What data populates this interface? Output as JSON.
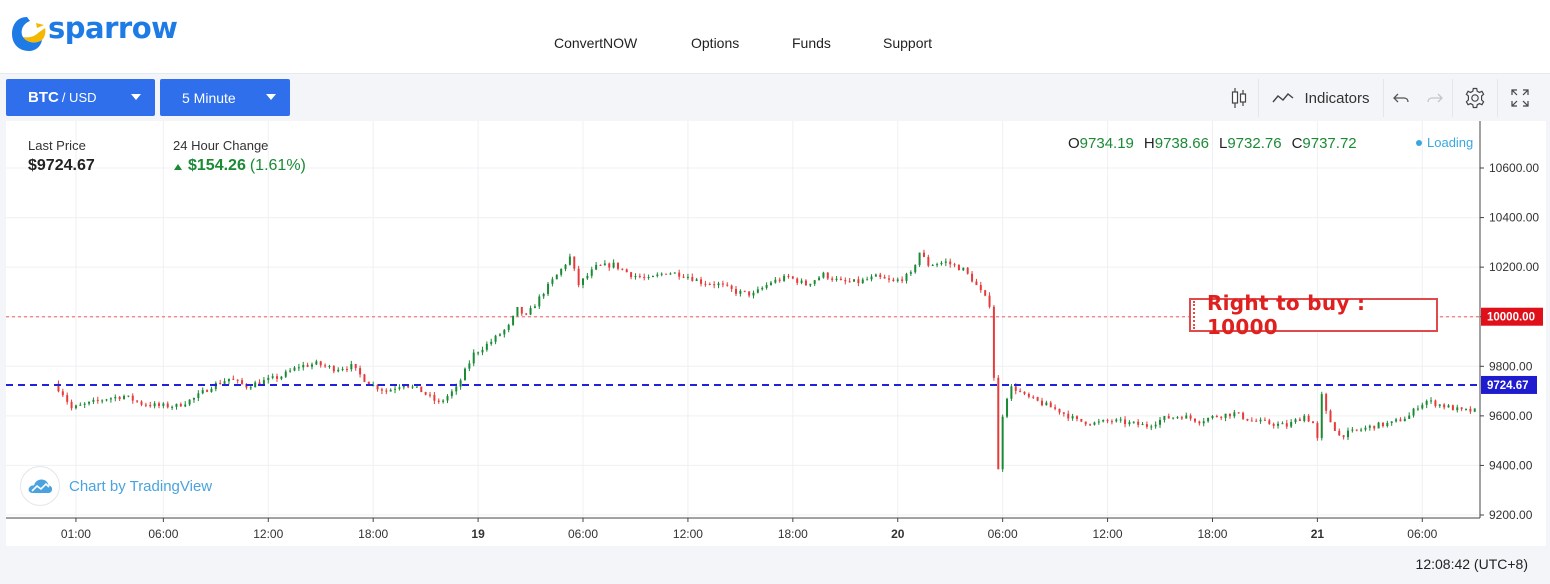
{
  "brand": {
    "name": "sparrow",
    "accent": "#1e7be6",
    "mark_color": "#f5b800"
  },
  "nav": {
    "items": [
      {
        "label": "ConvertNOW"
      },
      {
        "label": "Options"
      },
      {
        "label": "Funds"
      },
      {
        "label": "Support"
      }
    ]
  },
  "toolbar": {
    "pair": {
      "base": "BTC",
      "quote": "/ USD"
    },
    "interval": "5 Minute",
    "indicators_label": "Indicators",
    "icons": [
      "candles-icon",
      "indicators-icon",
      "undo-icon",
      "redo-icon",
      "settings-icon",
      "fullscreen-icon"
    ]
  },
  "stats": {
    "last_price_label": "Last Price",
    "last_price": "$9724.67",
    "change_label": "24 Hour Change",
    "change_value": "$154.26",
    "change_pct": "(1.61%)"
  },
  "ohlc": {
    "o": "9734.19",
    "h": "9738.66",
    "l": "9732.76",
    "c": "9737.72"
  },
  "loading_label": "Loading",
  "watermark": "Chart by TradingView",
  "right_to_buy": "Right to buy : 10000",
  "timestamp": "12:08:42 (UTC+8)",
  "colors": {
    "up": "#1a8a35",
    "down": "#e63b3b",
    "strike_line": "#f07a7a",
    "price_line": "#2222dd",
    "button": "#2f6fec"
  },
  "chart_data": {
    "type": "candlestick",
    "y_ticks": [
      "10600.00",
      "10400.00",
      "10200.00",
      "10000.00",
      "9800.00",
      "9600.00",
      "9400.00",
      "9200.00"
    ],
    "ylim": [
      9200,
      10600
    ],
    "x_ticks": [
      "01:00",
      "06:00",
      "12:00",
      "18:00",
      "19",
      "06:00",
      "12:00",
      "18:00",
      "20",
      "06:00",
      "12:00",
      "18:00",
      "21",
      "06:00"
    ],
    "x_tick_hours": [
      1,
      6,
      12,
      18,
      24,
      30,
      36,
      42,
      48,
      54,
      60,
      66,
      72,
      78
    ],
    "xlim_hours": [
      -3,
      81.3
    ],
    "strike_price": 10000,
    "strike_label": "10000.00",
    "last_price": 9724.67,
    "last_price_label": "9724.67",
    "price_path": [
      [
        0.0,
        9730
      ],
      [
        0.5,
        9690
      ],
      [
        1.0,
        9630
      ],
      [
        2.0,
        9650
      ],
      [
        3.0,
        9670
      ],
      [
        4.0,
        9680
      ],
      [
        5.0,
        9650
      ],
      [
        6.0,
        9640
      ],
      [
        7.0,
        9640
      ],
      [
        8.0,
        9670
      ],
      [
        9.0,
        9720
      ],
      [
        10.0,
        9750
      ],
      [
        11.0,
        9720
      ],
      [
        12.0,
        9740
      ],
      [
        13.0,
        9760
      ],
      [
        14.0,
        9800
      ],
      [
        15.0,
        9810
      ],
      [
        16.0,
        9790
      ],
      [
        17.0,
        9800
      ],
      [
        18.0,
        9730
      ],
      [
        19.0,
        9700
      ],
      [
        20.0,
        9730
      ],
      [
        21.0,
        9700
      ],
      [
        22.0,
        9650
      ],
      [
        23.0,
        9710
      ],
      [
        24.0,
        9850
      ],
      [
        25.0,
        9900
      ],
      [
        26.0,
        9960
      ],
      [
        26.5,
        10030
      ],
      [
        27.0,
        10000
      ],
      [
        28.0,
        10100
      ],
      [
        29.0,
        10190
      ],
      [
        29.5,
        10240
      ],
      [
        30.0,
        10130
      ],
      [
        31.0,
        10200
      ],
      [
        32.0,
        10210
      ],
      [
        33.0,
        10170
      ],
      [
        34.0,
        10150
      ],
      [
        35.0,
        10180
      ],
      [
        36.0,
        10170
      ],
      [
        37.0,
        10140
      ],
      [
        38.0,
        10130
      ],
      [
        39.0,
        10100
      ],
      [
        40.0,
        10090
      ],
      [
        41.0,
        10140
      ],
      [
        42.0,
        10160
      ],
      [
        43.0,
        10130
      ],
      [
        44.0,
        10170
      ],
      [
        45.0,
        10140
      ],
      [
        46.0,
        10140
      ],
      [
        47.0,
        10160
      ],
      [
        48.0,
        10140
      ],
      [
        49.0,
        10170
      ],
      [
        49.5,
        10260
      ],
      [
        50.0,
        10210
      ],
      [
        51.0,
        10220
      ],
      [
        52.0,
        10190
      ],
      [
        52.5,
        10150
      ],
      [
        53.0,
        10100
      ],
      [
        53.5,
        10050
      ],
      [
        53.8,
        9700
      ],
      [
        54.0,
        9380
      ],
      [
        54.3,
        9650
      ],
      [
        54.8,
        9720
      ],
      [
        55.5,
        9680
      ],
      [
        56.5,
        9650
      ],
      [
        57.5,
        9620
      ],
      [
        58.5,
        9580
      ],
      [
        59.5,
        9570
      ],
      [
        60.5,
        9580
      ],
      [
        61.5,
        9570
      ],
      [
        62.5,
        9560
      ],
      [
        63.5,
        9590
      ],
      [
        64.5,
        9600
      ],
      [
        65.5,
        9580
      ],
      [
        66.5,
        9600
      ],
      [
        67.5,
        9610
      ],
      [
        68.5,
        9580
      ],
      [
        69.5,
        9570
      ],
      [
        70.5,
        9560
      ],
      [
        71.5,
        9600
      ],
      [
        72.0,
        9570
      ],
      [
        72.2,
        9470
      ],
      [
        72.5,
        9680
      ],
      [
        72.8,
        9600
      ],
      [
        73.5,
        9520
      ],
      [
        74.5,
        9540
      ],
      [
        75.5,
        9560
      ],
      [
        76.5,
        9570
      ],
      [
        77.5,
        9600
      ],
      [
        78.0,
        9640
      ],
      [
        78.5,
        9660
      ],
      [
        79.5,
        9640
      ],
      [
        80.5,
        9620
      ],
      [
        81.2,
        9620
      ]
    ]
  }
}
